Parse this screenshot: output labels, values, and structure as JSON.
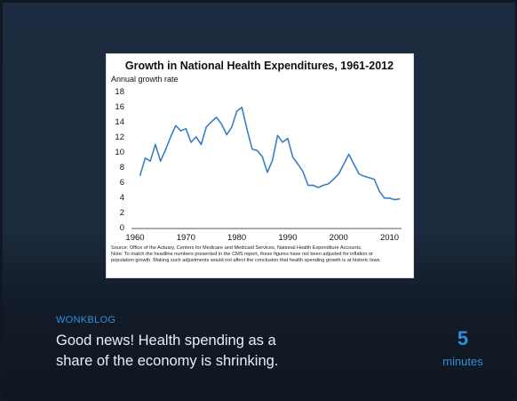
{
  "story": {
    "kicker": "WONKBLOG",
    "headline": "Good news! Health spending as a share of the economy is shrinking.",
    "read_time_value": "5",
    "read_time_unit": "minutes"
  },
  "colors": {
    "background": "#1c2b3f",
    "accent": "#2f8fd8",
    "line": "#3a7fc4"
  },
  "chart_data": {
    "type": "line",
    "title": "Growth in National Health Expenditures, 1961-2012",
    "ylabel": "Annual growth rate",
    "xlabel": "",
    "xlim": [
      1960,
      2012
    ],
    "ylim": [
      0,
      18
    ],
    "x_ticks": [
      "1960",
      "1970",
      "1980",
      "1990",
      "2000",
      "2010"
    ],
    "y_ticks": [
      "0",
      "2",
      "4",
      "6",
      "8",
      "10",
      "12",
      "14",
      "16",
      "18"
    ],
    "grid": false,
    "legend": "none",
    "note_line1": "Source: Office of the Actuary, Centers for Medicare and Medicaid Services, National Health Expenditure Accounts.",
    "note_line2": "Note: To match the headline numbers presented in the CMS report, these figures have not been adjusted for inflation or",
    "note_line3": "population growth.   Making such adjustments would not affect the conclusion that health spending growth is at historic lows.",
    "series": [
      {
        "x": [
          1961,
          1962,
          1963,
          1964,
          1965,
          1966,
          1967,
          1968,
          1969,
          1970,
          1971,
          1972,
          1973,
          1974,
          1975,
          1976,
          1977,
          1978,
          1979,
          1980,
          1981,
          1982,
          1983,
          1984,
          1985,
          1986,
          1987,
          1988,
          1989,
          1990,
          1991,
          1992,
          1993,
          1994,
          1995,
          1996,
          1997,
          1998,
          1999,
          2000,
          2001,
          2002,
          2003,
          2004,
          2005,
          2006,
          2007,
          2008,
          2009,
          2010,
          2011,
          2012
        ],
        "values": [
          6.9,
          9.2,
          8.8,
          11.0,
          8.8,
          10.3,
          12.0,
          13.5,
          12.8,
          13.1,
          11.3,
          12.0,
          11.0,
          13.3,
          14.0,
          14.6,
          13.7,
          12.3,
          13.3,
          15.4,
          15.9,
          13.0,
          10.4,
          10.2,
          9.4,
          7.3,
          8.9,
          12.2,
          11.3,
          11.8,
          9.3,
          8.4,
          7.4,
          5.6,
          5.6,
          5.3,
          5.6,
          5.8,
          6.4,
          7.1,
          8.4,
          9.7,
          8.4,
          7.1,
          6.8,
          6.6,
          6.4,
          4.8,
          3.9,
          3.9,
          3.7,
          3.8
        ]
      }
    ]
  }
}
